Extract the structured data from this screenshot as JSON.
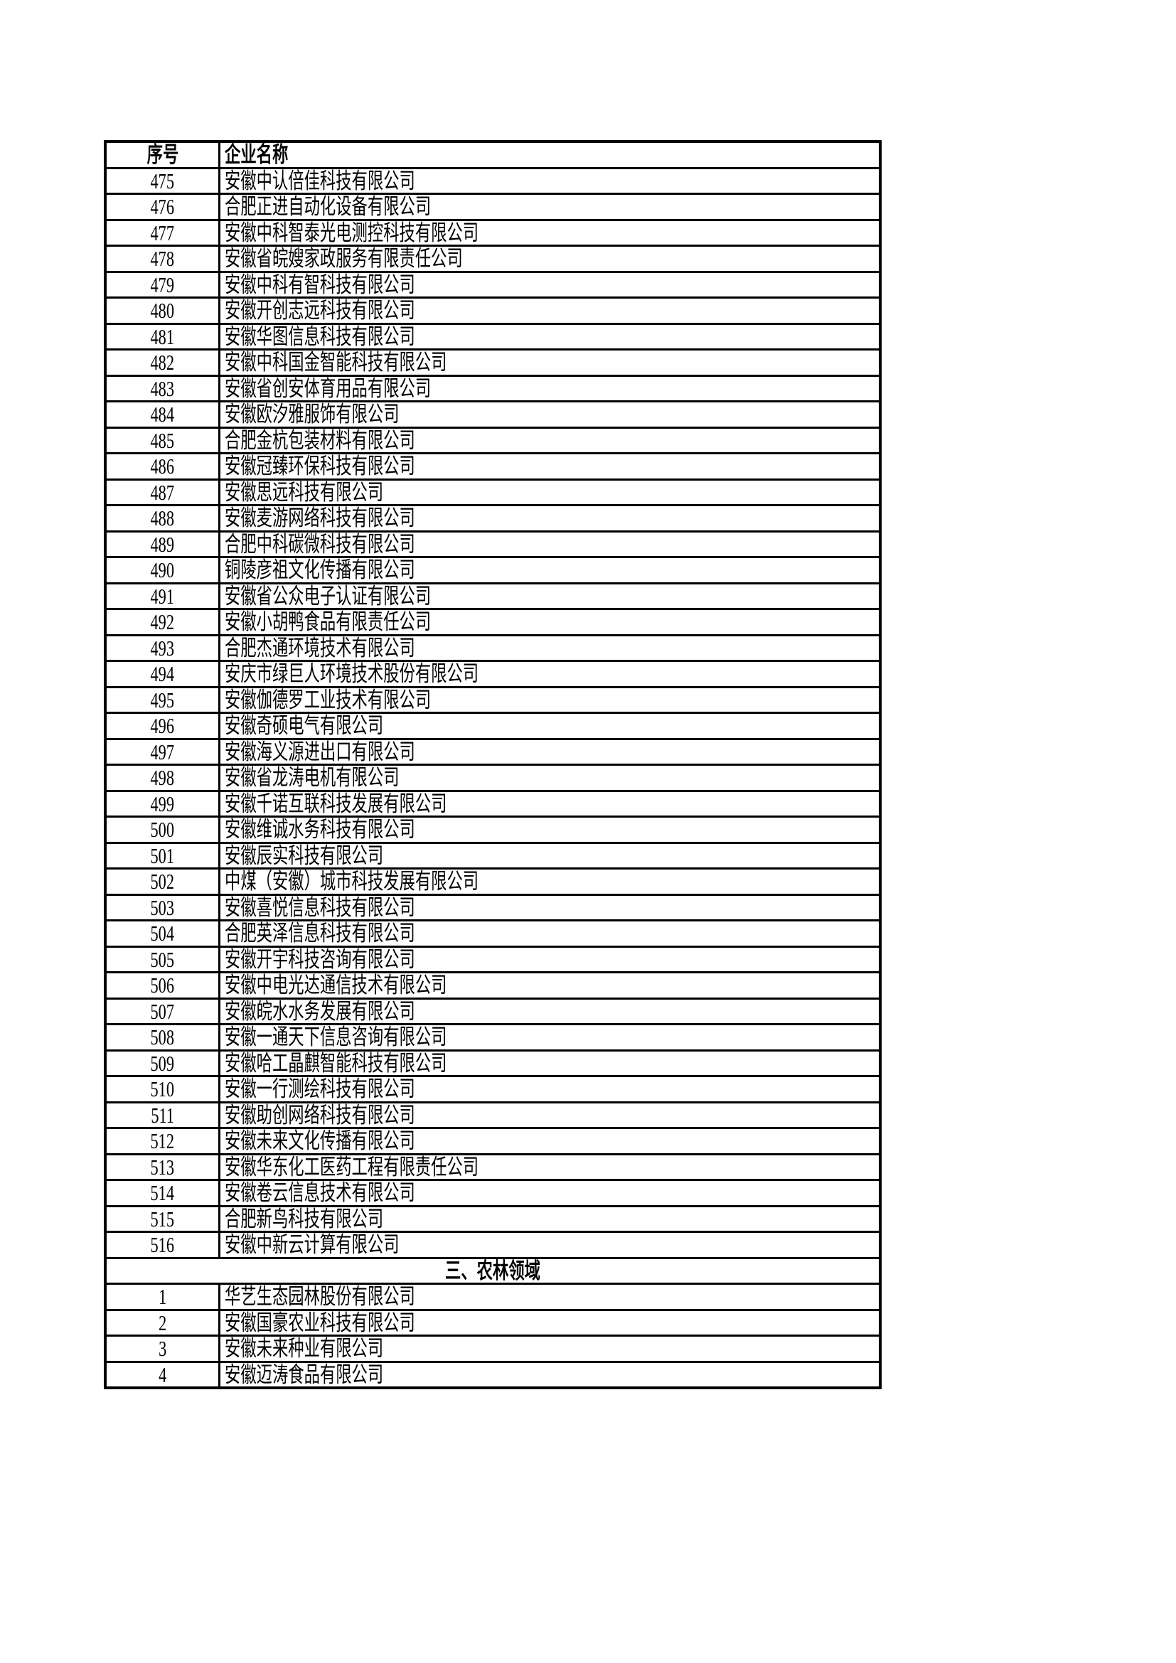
{
  "table": {
    "headers": {
      "no": "序号",
      "name": "企业名称"
    },
    "rows": [
      {
        "no": "475",
        "name": "安徽中认倍佳科技有限公司"
      },
      {
        "no": "476",
        "name": "合肥正进自动化设备有限公司"
      },
      {
        "no": "477",
        "name": "安徽中科智泰光电测控科技有限公司"
      },
      {
        "no": "478",
        "name": "安徽省皖嫂家政服务有限责任公司"
      },
      {
        "no": "479",
        "name": "安徽中科有智科技有限公司"
      },
      {
        "no": "480",
        "name": "安徽开创志远科技有限公司"
      },
      {
        "no": "481",
        "name": "安徽华图信息科技有限公司"
      },
      {
        "no": "482",
        "name": "安徽中科国金智能科技有限公司"
      },
      {
        "no": "483",
        "name": "安徽省创安体育用品有限公司"
      },
      {
        "no": "484",
        "name": "安徽欧汐雅服饰有限公司"
      },
      {
        "no": "485",
        "name": "合肥金杭包装材料有限公司"
      },
      {
        "no": "486",
        "name": "安徽冠臻环保科技有限公司"
      },
      {
        "no": "487",
        "name": "安徽思远科技有限公司"
      },
      {
        "no": "488",
        "name": "安徽麦游网络科技有限公司"
      },
      {
        "no": "489",
        "name": "合肥中科碳微科技有限公司"
      },
      {
        "no": "490",
        "name": "铜陵彦祖文化传播有限公司"
      },
      {
        "no": "491",
        "name": "安徽省公众电子认证有限公司"
      },
      {
        "no": "492",
        "name": "安徽小胡鸭食品有限责任公司"
      },
      {
        "no": "493",
        "name": "合肥杰通环境技术有限公司"
      },
      {
        "no": "494",
        "name": "安庆市绿巨人环境技术股份有限公司"
      },
      {
        "no": "495",
        "name": "安徽伽德罗工业技术有限公司"
      },
      {
        "no": "496",
        "name": "安徽奇硕电气有限公司"
      },
      {
        "no": "497",
        "name": "安徽海义源进出口有限公司"
      },
      {
        "no": "498",
        "name": "安徽省龙涛电机有限公司"
      },
      {
        "no": "499",
        "name": "安徽千诺互联科技发展有限公司"
      },
      {
        "no": "500",
        "name": "安徽维诚水务科技有限公司"
      },
      {
        "no": "501",
        "name": "安徽辰实科技有限公司"
      },
      {
        "no": "502",
        "name": "中煤（安徽）城市科技发展有限公司"
      },
      {
        "no": "503",
        "name": "安徽喜悦信息科技有限公司"
      },
      {
        "no": "504",
        "name": "合肥英泽信息科技有限公司"
      },
      {
        "no": "505",
        "name": "安徽开宇科技咨询有限公司"
      },
      {
        "no": "506",
        "name": "安徽中电光达通信技术有限公司"
      },
      {
        "no": "507",
        "name": "安徽皖水水务发展有限公司"
      },
      {
        "no": "508",
        "name": "安徽一通天下信息咨询有限公司"
      },
      {
        "no": "509",
        "name": "安徽哈工晶麒智能科技有限公司"
      },
      {
        "no": "510",
        "name": "安徽一行测绘科技有限公司"
      },
      {
        "no": "511",
        "name": "安徽助创网络科技有限公司"
      },
      {
        "no": "512",
        "name": "安徽未来文化传播有限公司"
      },
      {
        "no": "513",
        "name": "安徽华东化工医药工程有限责任公司"
      },
      {
        "no": "514",
        "name": "安徽卷云信息技术有限公司"
      },
      {
        "no": "515",
        "name": "合肥新鸟科技有限公司"
      },
      {
        "no": "516",
        "name": "安徽中新云计算有限公司"
      }
    ],
    "section": "三、农林领域",
    "section_rows": [
      {
        "no": "1",
        "name": "华艺生态园林股份有限公司"
      },
      {
        "no": "2",
        "name": "安徽国豪农业科技有限公司"
      },
      {
        "no": "3",
        "name": "安徽未来种业有限公司"
      },
      {
        "no": "4",
        "name": "安徽迈涛食品有限公司"
      }
    ]
  }
}
